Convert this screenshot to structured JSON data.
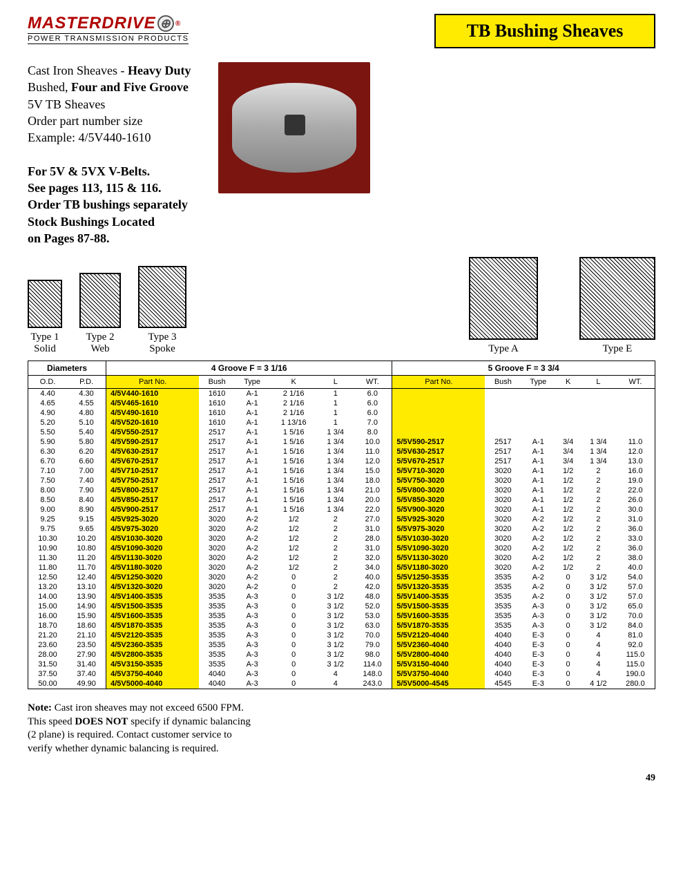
{
  "logo": {
    "main": "MASTERDRIVE",
    "sub": "POWER TRANSMISSION PRODUCTS",
    "reg": "®"
  },
  "title": "TB Bushing Sheaves",
  "desc": {
    "l1a": "Cast Iron Sheaves - ",
    "l1b": "Heavy Duty",
    "l2a": "Bushed, ",
    "l2b": "Four and Five Groove",
    "l3": "5V TB Sheaves",
    "l4": "Order part number size",
    "l5": "Example: 4/5V440-1610",
    "l6": "For 5V & 5VX V-Belts.",
    "l7": "See pages 113, 115 & 116.",
    "l8": "Order TB bushings separately",
    "l9": "Stock Bushings Located",
    "l10": "on Pages 87-88."
  },
  "types": {
    "t1a": "Type 1",
    "t1b": "Solid",
    "t2a": "Type 2",
    "t2b": "Web",
    "t3a": "Type 3",
    "t3b": "Spoke",
    "ta": "Type A",
    "te": "Type E"
  },
  "headers": {
    "diameters": "Diameters",
    "g4": "4 Groove F = 3 1/16",
    "g5": "5 Groove  F = 3 3/4",
    "od": "O.D.",
    "pd": "P.D.",
    "partno": "Part No.",
    "bush": "Bush",
    "type": "Type",
    "k": "K",
    "l": "L",
    "wt": "WT."
  },
  "rows": [
    {
      "od": "4.40",
      "pd": "4.30",
      "p4": "4/5V440-1610",
      "b4": "1610",
      "t4": "A-1",
      "k4": "2 1/16",
      "l4": "1",
      "w4": "6.0",
      "p5": "",
      "b5": "",
      "t5": "",
      "k5": "",
      "l5": "",
      "w5": ""
    },
    {
      "od": "4.65",
      "pd": "4.55",
      "p4": "4/5V465-1610",
      "b4": "1610",
      "t4": "A-1",
      "k4": "2 1/16",
      "l4": "1",
      "w4": "6.0",
      "p5": "",
      "b5": "",
      "t5": "",
      "k5": "",
      "l5": "",
      "w5": ""
    },
    {
      "od": "4.90",
      "pd": "4.80",
      "p4": "4/5V490-1610",
      "b4": "1610",
      "t4": "A-1",
      "k4": "2 1/16",
      "l4": "1",
      "w4": "6.0",
      "p5": "",
      "b5": "",
      "t5": "",
      "k5": "",
      "l5": "",
      "w5": ""
    },
    {
      "od": "5.20",
      "pd": "5.10",
      "p4": "4/5V520-1610",
      "b4": "1610",
      "t4": "A-1",
      "k4": "1 13/16",
      "l4": "1",
      "w4": "7.0",
      "p5": "",
      "b5": "",
      "t5": "",
      "k5": "",
      "l5": "",
      "w5": ""
    },
    {
      "od": "5.50",
      "pd": "5.40",
      "p4": "4/5V550-2517",
      "b4": "2517",
      "t4": "A-1",
      "k4": "1 5/16",
      "l4": "1 3/4",
      "w4": "8.0",
      "p5": "",
      "b5": "",
      "t5": "",
      "k5": "",
      "l5": "",
      "w5": ""
    },
    {
      "od": "5.90",
      "pd": "5.80",
      "p4": "4/5V590-2517",
      "b4": "2517",
      "t4": "A-1",
      "k4": "1 5/16",
      "l4": "1 3/4",
      "w4": "10.0",
      "p5": "5/5V590-2517",
      "b5": "2517",
      "t5": "A-1",
      "k5": "3/4",
      "l5": "1 3/4",
      "w5": "11.0"
    },
    {
      "od": "6.30",
      "pd": "6.20",
      "p4": "4/5V630-2517",
      "b4": "2517",
      "t4": "A-1",
      "k4": "1 5/16",
      "l4": "1 3/4",
      "w4": "11.0",
      "p5": "5/5V630-2517",
      "b5": "2517",
      "t5": "A-1",
      "k5": "3/4",
      "l5": "1 3/4",
      "w5": "12.0"
    },
    {
      "od": "6.70",
      "pd": "6.60",
      "p4": "4/5V670-2517",
      "b4": "2517",
      "t4": "A-1",
      "k4": "1 5/16",
      "l4": "1 3/4",
      "w4": "12.0",
      "p5": "5/5V670-2517",
      "b5": "2517",
      "t5": "A-1",
      "k5": "3/4",
      "l5": "1 3/4",
      "w5": "13.0"
    },
    {
      "od": "7.10",
      "pd": "7.00",
      "p4": "4/5V710-2517",
      "b4": "2517",
      "t4": "A-1",
      "k4": "1 5/16",
      "l4": "1 3/4",
      "w4": "15.0",
      "p5": "5/5V710-3020",
      "b5": "3020",
      "t5": "A-1",
      "k5": "1/2",
      "l5": "2",
      "w5": "16.0"
    },
    {
      "od": "7.50",
      "pd": "7.40",
      "p4": "4/5V750-2517",
      "b4": "2517",
      "t4": "A-1",
      "k4": "1 5/16",
      "l4": "1 3/4",
      "w4": "18.0",
      "p5": "5/5V750-3020",
      "b5": "3020",
      "t5": "A-1",
      "k5": "1/2",
      "l5": "2",
      "w5": "19.0"
    },
    {
      "od": "8.00",
      "pd": "7.90",
      "p4": "4/5V800-2517",
      "b4": "2517",
      "t4": "A-1",
      "k4": "1 5/16",
      "l4": "1 3/4",
      "w4": "21.0",
      "p5": "5/5V800-3020",
      "b5": "3020",
      "t5": "A-1",
      "k5": "1/2",
      "l5": "2",
      "w5": "22.0"
    },
    {
      "od": "8.50",
      "pd": "8.40",
      "p4": "4/5V850-2517",
      "b4": "2517",
      "t4": "A-1",
      "k4": "1 5/16",
      "l4": "1 3/4",
      "w4": "20.0",
      "p5": "5/5V850-3020",
      "b5": "3020",
      "t5": "A-1",
      "k5": "1/2",
      "l5": "2",
      "w5": "26.0"
    },
    {
      "od": "9.00",
      "pd": "8.90",
      "p4": "4/5V900-2517",
      "b4": "2517",
      "t4": "A-1",
      "k4": "1 5/16",
      "l4": "1 3/4",
      "w4": "22.0",
      "p5": "5/5V900-3020",
      "b5": "3020",
      "t5": "A-1",
      "k5": "1/2",
      "l5": "2",
      "w5": "30.0"
    },
    {
      "od": "9.25",
      "pd": "9.15",
      "p4": "4/5V925-3020",
      "b4": "3020",
      "t4": "A-2",
      "k4": "1/2",
      "l4": "2",
      "w4": "27.0",
      "p5": "5/5V925-3020",
      "b5": "3020",
      "t5": "A-2",
      "k5": "1/2",
      "l5": "2",
      "w5": "31.0"
    },
    {
      "od": "9.75",
      "pd": "9.65",
      "p4": "4/5V975-3020",
      "b4": "3020",
      "t4": "A-2",
      "k4": "1/2",
      "l4": "2",
      "w4": "31.0",
      "p5": "5/5V975-3020",
      "b5": "3020",
      "t5": "A-2",
      "k5": "1/2",
      "l5": "2",
      "w5": "36.0"
    },
    {
      "od": "10.30",
      "pd": "10.20",
      "p4": "4/5V1030-3020",
      "b4": "3020",
      "t4": "A-2",
      "k4": "1/2",
      "l4": "2",
      "w4": "28.0",
      "p5": "5/5V1030-3020",
      "b5": "3020",
      "t5": "A-2",
      "k5": "1/2",
      "l5": "2",
      "w5": "33.0"
    },
    {
      "od": "10.90",
      "pd": "10.80",
      "p4": "4/5V1090-3020",
      "b4": "3020",
      "t4": "A-2",
      "k4": "1/2",
      "l4": "2",
      "w4": "31.0",
      "p5": "5/5V1090-3020",
      "b5": "3020",
      "t5": "A-2",
      "k5": "1/2",
      "l5": "2",
      "w5": "36.0"
    },
    {
      "od": "11.30",
      "pd": "11.20",
      "p4": "4/5V1130-3020",
      "b4": "3020",
      "t4": "A-2",
      "k4": "1/2",
      "l4": "2",
      "w4": "32.0",
      "p5": "5/5V1130-3020",
      "b5": "3020",
      "t5": "A-2",
      "k5": "1/2",
      "l5": "2",
      "w5": "38.0"
    },
    {
      "od": "11.80",
      "pd": "11.70",
      "p4": "4/5V1180-3020",
      "b4": "3020",
      "t4": "A-2",
      "k4": "1/2",
      "l4": "2",
      "w4": "34.0",
      "p5": "5/5V1180-3020",
      "b5": "3020",
      "t5": "A-2",
      "k5": "1/2",
      "l5": "2",
      "w5": "40.0"
    },
    {
      "od": "12.50",
      "pd": "12.40",
      "p4": "4/5V1250-3020",
      "b4": "3020",
      "t4": "A-2",
      "k4": "0",
      "l4": "2",
      "w4": "40.0",
      "p5": "5/5V1250-3535",
      "b5": "3535",
      "t5": "A-2",
      "k5": "0",
      "l5": "3 1/2",
      "w5": "54.0"
    },
    {
      "od": "13.20",
      "pd": "13.10",
      "p4": "4/5V1320-3020",
      "b4": "3020",
      "t4": "A-2",
      "k4": "0",
      "l4": "2",
      "w4": "42.0",
      "p5": "5/5V1320-3535",
      "b5": "3535",
      "t5": "A-2",
      "k5": "0",
      "l5": "3 1/2",
      "w5": "57.0"
    },
    {
      "od": "14.00",
      "pd": "13.90",
      "p4": "4/5V1400-3535",
      "b4": "3535",
      "t4": "A-3",
      "k4": "0",
      "l4": "3 1/2",
      "w4": "48.0",
      "p5": "5/5V1400-3535",
      "b5": "3535",
      "t5": "A-2",
      "k5": "0",
      "l5": "3 1/2",
      "w5": "57.0"
    },
    {
      "od": "15.00",
      "pd": "14.90",
      "p4": "4/5V1500-3535",
      "b4": "3535",
      "t4": "A-3",
      "k4": "0",
      "l4": "3 1/2",
      "w4": "52.0",
      "p5": "5/5V1500-3535",
      "b5": "3535",
      "t5": "A-3",
      "k5": "0",
      "l5": "3 1/2",
      "w5": "65.0"
    },
    {
      "od": "16.00",
      "pd": "15.90",
      "p4": "4/5V1600-3535",
      "b4": "3535",
      "t4": "A-3",
      "k4": "0",
      "l4": "3 1/2",
      "w4": "53.0",
      "p5": "5/5V1600-3535",
      "b5": "3535",
      "t5": "A-3",
      "k5": "0",
      "l5": "3 1/2",
      "w5": "70.0"
    },
    {
      "od": "18.70",
      "pd": "18.60",
      "p4": "4/5V1870-3535",
      "b4": "3535",
      "t4": "A-3",
      "k4": "0",
      "l4": "3 1/2",
      "w4": "63.0",
      "p5": "5/5V1870-3535",
      "b5": "3535",
      "t5": "A-3",
      "k5": "0",
      "l5": "3 1/2",
      "w5": "84.0"
    },
    {
      "od": "21.20",
      "pd": "21.10",
      "p4": "4/5V2120-3535",
      "b4": "3535",
      "t4": "A-3",
      "k4": "0",
      "l4": "3 1/2",
      "w4": "70.0",
      "p5": "5/5V2120-4040",
      "b5": "4040",
      "t5": "E-3",
      "k5": "0",
      "l5": "4",
      "w5": "81.0"
    },
    {
      "od": "23.60",
      "pd": "23.50",
      "p4": "4/5V2360-3535",
      "b4": "3535",
      "t4": "A-3",
      "k4": "0",
      "l4": "3 1/2",
      "w4": "79.0",
      "p5": "5/5V2360-4040",
      "b5": "4040",
      "t5": "E-3",
      "k5": "0",
      "l5": "4",
      "w5": "92.0"
    },
    {
      "od": "28.00",
      "pd": "27.90",
      "p4": "4/5V2800-3535",
      "b4": "3535",
      "t4": "A-3",
      "k4": "0",
      "l4": "3 1/2",
      "w4": "98.0",
      "p5": "5/5V2800-4040",
      "b5": "4040",
      "t5": "E-3",
      "k5": "0",
      "l5": "4",
      "w5": "115.0"
    },
    {
      "od": "31.50",
      "pd": "31.40",
      "p4": "4/5V3150-3535",
      "b4": "3535",
      "t4": "A-3",
      "k4": "0",
      "l4": "3 1/2",
      "w4": "114.0",
      "p5": "5/5V3150-4040",
      "b5": "4040",
      "t5": "E-3",
      "k5": "0",
      "l5": "4",
      "w5": "115.0"
    },
    {
      "od": "37.50",
      "pd": "37.40",
      "p4": "4/5V3750-4040",
      "b4": "4040",
      "t4": "A-3",
      "k4": "0",
      "l4": "4",
      "w4": "148.0",
      "p5": "5/5V3750-4040",
      "b5": "4040",
      "t5": "E-3",
      "k5": "0",
      "l5": "4",
      "w5": "190.0"
    },
    {
      "od": "50.00",
      "pd": "49.90",
      "p4": "4/5V5000-4040",
      "b4": "4040",
      "t4": "A-3",
      "k4": "0",
      "l4": "4",
      "w4": "243.0",
      "p5": "5/5V5000-4545",
      "b5": "4545",
      "t5": "E-3",
      "k5": "0",
      "l5": "4 1/2",
      "w5": "280.0"
    }
  ],
  "note": {
    "l1a": "Note:",
    "l1b": " Cast iron sheaves may not exceed 6500 FPM.",
    "l2a": "This speed ",
    "l2b": "DOES NOT",
    "l2c": " specify if dynamic balancing",
    "l3": "(2 plane) is required. Contact customer service to",
    "l4": "verify whether dynamic balancing is required."
  },
  "page": "49"
}
